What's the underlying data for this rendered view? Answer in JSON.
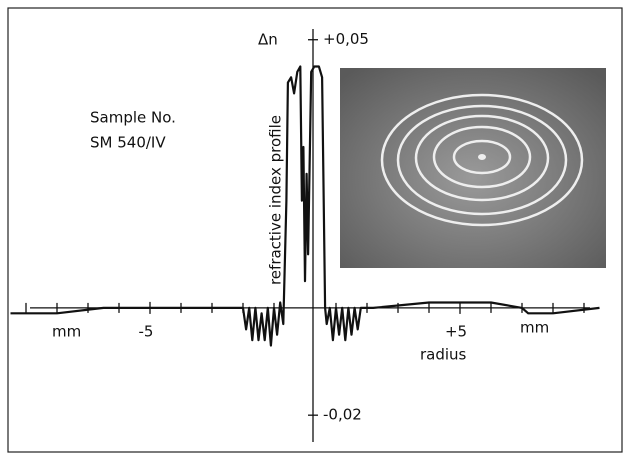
{
  "chart_data": {
    "type": "line",
    "sample_label": "Sample No.",
    "sample_id": "SM 540/IV",
    "y_label": "Δn",
    "y_annotation": "refractive index profile",
    "x_label": "radius",
    "x_unit": "mm",
    "xlim": [
      -9.5,
      9.5
    ],
    "ylim": [
      -0.025,
      0.052
    ],
    "xticks": [
      -5,
      {
        "value": 5,
        "label": "+5"
      }
    ],
    "xminorticks": [
      -9,
      -8,
      -7,
      -6,
      -4,
      -3,
      -2,
      -1,
      1,
      2,
      3,
      4,
      6,
      7,
      8,
      9
    ],
    "yticks": [
      {
        "value": 0.05,
        "label": "+0,05"
      },
      {
        "value": -0.02,
        "label": "-0,02"
      }
    ],
    "color": "#111111",
    "x": [
      -9.5,
      -8,
      -6.5,
      -3,
      -2,
      -1.9,
      -1.8,
      -1.7,
      -1.6,
      -1.5,
      -1.4,
      -1.3,
      -1.2,
      -1.1,
      -1.0,
      -0.9,
      -0.8,
      -0.7,
      -0.6,
      -0.55,
      -0.45,
      -0.35,
      -0.25,
      -0.15,
      -0.1,
      -0.05,
      0,
      0.05,
      0.1,
      0.2,
      0.3,
      0.45,
      0.55,
      0.65,
      0.7,
      0.8,
      0.9,
      1.0,
      1.1,
      1.2,
      1.3,
      1.4,
      1.5,
      1.6,
      1.7,
      1.8,
      2.2,
      4,
      6,
      7,
      7.2,
      8,
      9.5
    ],
    "values": [
      -0.001,
      -0.001,
      0,
      0,
      0,
      -0.004,
      0,
      -0.006,
      0,
      -0.006,
      -0.001,
      -0.006,
      0,
      -0.007,
      0,
      -0.005,
      0.001,
      -0.003,
      0.02,
      0.042,
      0.043,
      0.04,
      0.044,
      0.045,
      0.02,
      0.03,
      0.005,
      0.025,
      0.01,
      0.044,
      0.045,
      0.045,
      0.043,
      0,
      -0.003,
      0,
      -0.006,
      0,
      -0.005,
      0,
      -0.006,
      0,
      -0.005,
      0,
      -0.004,
      0,
      0,
      0.001,
      0.001,
      0,
      -0.001,
      -0.001,
      0
    ]
  }
}
